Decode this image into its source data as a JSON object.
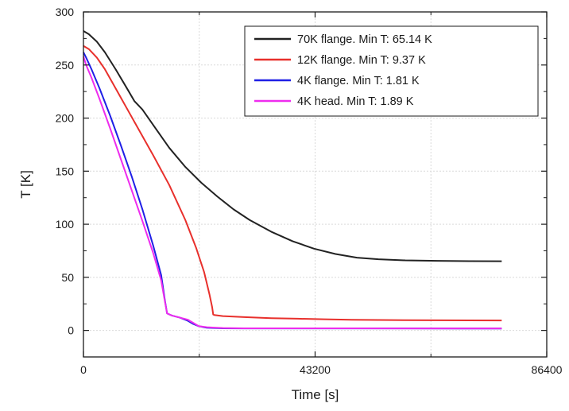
{
  "chart_data": {
    "type": "line",
    "title": "",
    "xlabel": "Time [s]",
    "ylabel": "T [K]",
    "xlim": [
      0,
      86400
    ],
    "ylim": [
      -25,
      300
    ],
    "x_ticks": [
      0,
      43200,
      86400
    ],
    "x_tick_labels": [
      "0",
      "43200",
      "86400"
    ],
    "y_ticks": [
      0,
      50,
      100,
      150,
      200,
      250,
      300
    ],
    "y_tick_labels": [
      "0",
      "50",
      "100",
      "150",
      "200",
      "250",
      "300"
    ],
    "grid": true,
    "legend_position": "top-right",
    "series": [
      {
        "name": "70K flange. Min T: 65.14 K",
        "color": "#222222",
        "x": [
          0,
          1000,
          2500,
          4000,
          6000,
          8000,
          9500,
          11000,
          13500,
          16000,
          19000,
          22000,
          25000,
          28000,
          31000,
          35000,
          39000,
          43000,
          47000,
          51000,
          55000,
          60000,
          66000,
          72000,
          78000
        ],
        "y": [
          282,
          279,
          272,
          262,
          246,
          229,
          216,
          208,
          190,
          172,
          154,
          139,
          126,
          114,
          104,
          93,
          84,
          77,
          72,
          68.5,
          67,
          66,
          65.5,
          65.2,
          65.14
        ]
      },
      {
        "name": "12K flange. Min T: 9.37 K",
        "color": "#e8302c",
        "x": [
          0,
          1000,
          2500,
          4000,
          6000,
          8000,
          10000,
          13000,
          16000,
          19000,
          21000,
          22500,
          23500,
          24000,
          24200,
          24400,
          26000,
          30000,
          35000,
          40000,
          45000,
          50000,
          55000,
          60000,
          66000,
          72000,
          78000
        ],
        "y": [
          268,
          265,
          257,
          246,
          228,
          210,
          192,
          165,
          137,
          104,
          78,
          55,
          34,
          22,
          15,
          14.5,
          13.5,
          12.5,
          11.5,
          11,
          10.5,
          10,
          9.8,
          9.6,
          9.5,
          9.4,
          9.37
        ]
      },
      {
        "name": "4K flange. Min T: 1.81 K",
        "color": "#1f1fe6",
        "x": [
          0,
          500,
          1500,
          3000,
          5000,
          7000,
          9000,
          11000,
          13000,
          14500,
          15200,
          15600,
          16500,
          18000,
          19500,
          20500,
          21500,
          23000,
          26000,
          30000,
          40000,
          50000,
          60000,
          70000,
          78000
        ],
        "y": [
          262,
          257,
          246,
          228,
          202,
          174,
          145,
          114,
          80,
          52,
          28,
          16,
          14,
          12,
          9,
          6,
          4,
          2.5,
          2,
          1.9,
          1.85,
          1.83,
          1.82,
          1.81,
          1.81
        ]
      },
      {
        "name": "4K head. Min T: 1.89 K",
        "color": "#ee2cee",
        "x": [
          0,
          500,
          1500,
          3000,
          5000,
          7000,
          9000,
          11000,
          13000,
          14500,
          15200,
          15600,
          16500,
          18000,
          19500,
          20500,
          21500,
          23000,
          26000,
          30000,
          40000,
          50000,
          60000,
          70000,
          78000
        ],
        "y": [
          258,
          250,
          238,
          218,
          190,
          161,
          132,
          103,
          73,
          47,
          27,
          16,
          14,
          12,
          10,
          7,
          4,
          3,
          2.2,
          2,
          1.95,
          1.92,
          1.9,
          1.89,
          1.89
        ]
      }
    ]
  }
}
